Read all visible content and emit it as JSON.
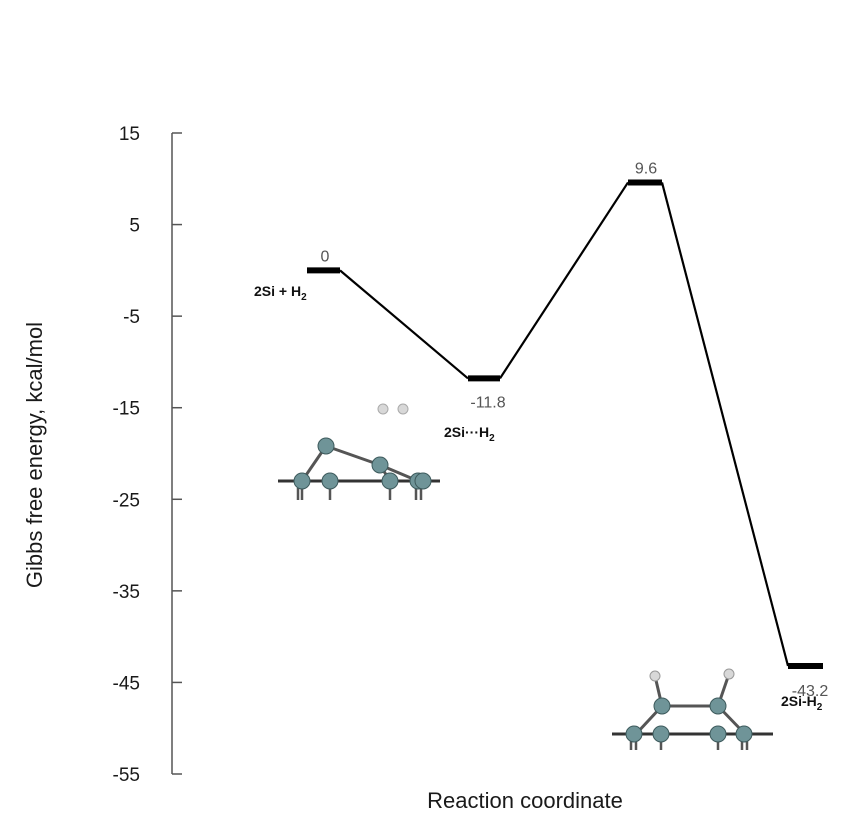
{
  "chart_data": {
    "type": "line",
    "title": "",
    "xlabel": "Reaction coordinate",
    "ylabel": "Gibbs free energy, kcal/mol",
    "ylim": [
      -55,
      15
    ],
    "yticks": [
      15,
      5,
      -5,
      -15,
      -25,
      -35,
      -45,
      -55
    ],
    "grid": false,
    "legend": "none",
    "states": [
      {
        "value": 0,
        "label": "0",
        "name_main": "2Si + H",
        "name_sub": "2"
      },
      {
        "value": -11.8,
        "label": "-11.8",
        "name_main": "2Si···H",
        "name_sub": "2"
      },
      {
        "value": 9.6,
        "label": "9.6",
        "name_main": "",
        "name_sub": ""
      },
      {
        "value": -43.2,
        "label": "-43.2",
        "name_main": "2Si-H",
        "name_sub": "2"
      }
    ],
    "colors": {
      "line": "#000000",
      "axis": "#555555",
      "si_atom": "#6f9498",
      "si_atom_edge": "#3d5a5c",
      "h_atom": "#d8d8d8",
      "bond": "#555555"
    }
  }
}
